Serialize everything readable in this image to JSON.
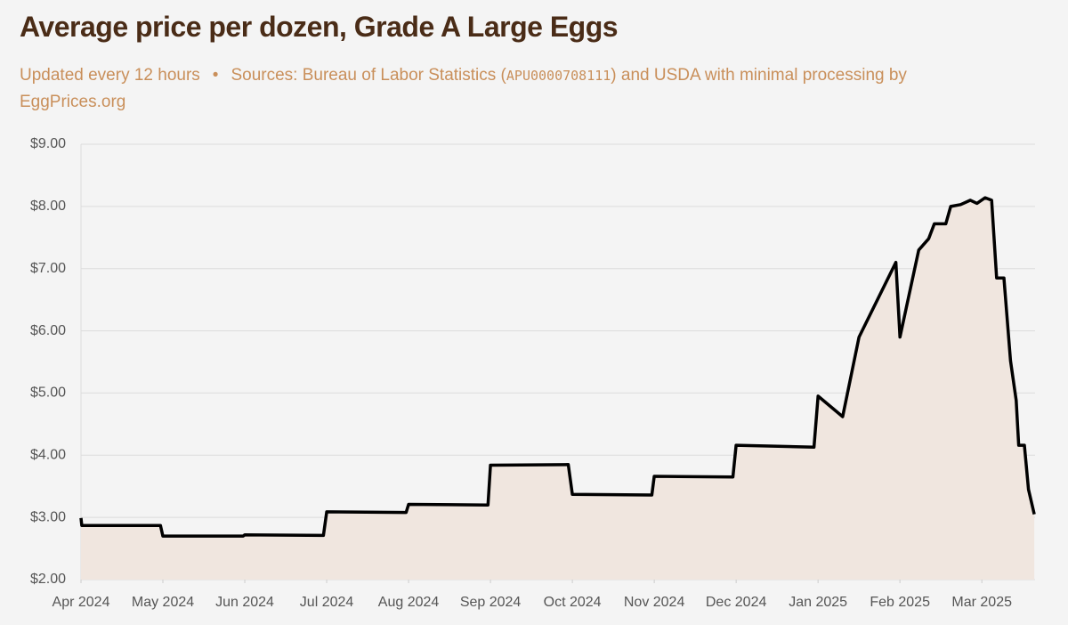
{
  "chart_data": {
    "type": "line",
    "title": "Average price per dozen, Grade A Large Eggs",
    "subtitle_parts": [
      "Updated every 12 hours",
      "•",
      "Sources: Bureau of Labor Statistics (",
      "APU0000708111",
      ") and USDA with minimal processing by",
      "EggPrices.org"
    ],
    "x": [
      0,
      0.01,
      0.97,
      1.0,
      1.98,
      2.0,
      2.96,
      3.0,
      3.97,
      4.0,
      4.97,
      5.0,
      5.95,
      6.0,
      6.97,
      7.0,
      7.96,
      8.0,
      8.95,
      9.0,
      9.3,
      9.5,
      9.95,
      10.0,
      10.23,
      10.35,
      10.42,
      10.56,
      10.62,
      10.74,
      10.86,
      10.94,
      11.04,
      11.12,
      11.18,
      11.27,
      11.35,
      11.42,
      11.45,
      11.52,
      11.57,
      11.64
    ],
    "series": [
      {
        "name": "Average price",
        "color": "#000000",
        "fill": "#f0e6df",
        "values": [
          2.99,
          2.87,
          2.87,
          2.7,
          2.7,
          2.72,
          2.71,
          3.09,
          3.08,
          3.21,
          3.2,
          3.84,
          3.85,
          3.37,
          3.36,
          3.66,
          3.65,
          4.16,
          4.13,
          4.95,
          4.62,
          5.9,
          7.1,
          5.9,
          7.3,
          7.48,
          7.72,
          7.72,
          8.0,
          8.03,
          8.1,
          8.05,
          8.14,
          8.1,
          6.85,
          6.85,
          5.52,
          4.88,
          4.16,
          4.16,
          3.45,
          3.05
        ]
      }
    ],
    "xlim": [
      0,
      11.65
    ],
    "xticks": [
      {
        "value": 0,
        "label": "Apr 2024"
      },
      {
        "value": 1,
        "label": "May 2024"
      },
      {
        "value": 2,
        "label": "Jun 2024"
      },
      {
        "value": 3,
        "label": "Jul 2024"
      },
      {
        "value": 4,
        "label": "Aug 2024"
      },
      {
        "value": 5,
        "label": "Sep 2024"
      },
      {
        "value": 6,
        "label": "Oct 2024"
      },
      {
        "value": 7,
        "label": "Nov 2024"
      },
      {
        "value": 8,
        "label": "Dec 2024"
      },
      {
        "value": 9,
        "label": "Jan 2025"
      },
      {
        "value": 10,
        "label": "Feb 2025"
      },
      {
        "value": 11,
        "label": "Mar 2025"
      }
    ],
    "ylim": [
      2,
      9
    ],
    "yticks": [
      {
        "value": 2,
        "label": "$2.00"
      },
      {
        "value": 3,
        "label": "$3.00"
      },
      {
        "value": 4,
        "label": "$4.00"
      },
      {
        "value": 5,
        "label": "$5.00"
      },
      {
        "value": 6,
        "label": "$6.00"
      },
      {
        "value": 7,
        "label": "$7.00"
      },
      {
        "value": 8,
        "label": "$8.00"
      },
      {
        "value": 9,
        "label": "$9.00"
      }
    ],
    "grid": true
  }
}
